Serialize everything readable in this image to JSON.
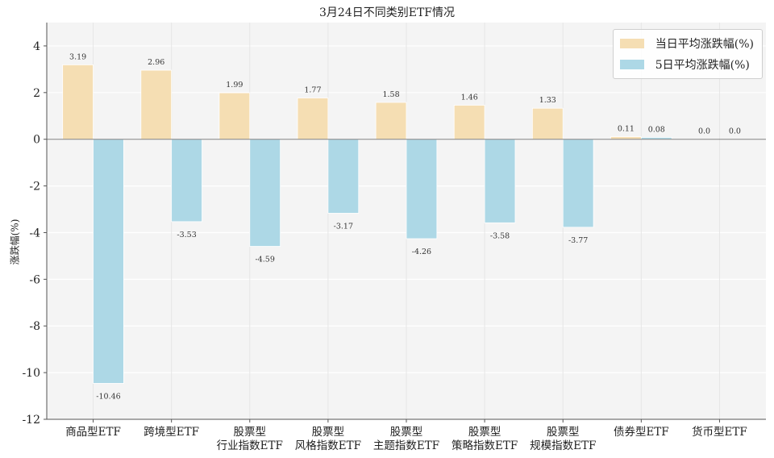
{
  "chart_data": {
    "type": "bar",
    "title": "3月24日不同类别ETF情况",
    "xlabel": "",
    "ylabel": "涨跌幅(%)",
    "ylim": [
      -12,
      5
    ],
    "yticks": [
      4,
      2,
      0,
      -2,
      -4,
      -6,
      -8,
      -10,
      -12
    ],
    "grid": true,
    "legend_position": "top-right",
    "categories": [
      [
        "商品型ETF"
      ],
      [
        "跨境型ETF"
      ],
      [
        "股票型",
        "行业指数ETF"
      ],
      [
        "股票型",
        "风格指数ETF"
      ],
      [
        "股票型",
        "主题指数ETF"
      ],
      [
        "股票型",
        "策略指数ETF"
      ],
      [
        "股票型",
        "规模指数ETF"
      ],
      [
        "债券型ETF"
      ],
      [
        "货币型ETF"
      ]
    ],
    "series": [
      {
        "name": "当日平均涨跌幅(%)",
        "color": "#f5deb3",
        "values": [
          3.19,
          2.96,
          1.99,
          1.77,
          1.58,
          1.46,
          1.33,
          0.11,
          0.0
        ]
      },
      {
        "name": "5日平均涨跌幅(%)",
        "color": "#add8e6",
        "values": [
          -10.46,
          -3.53,
          -4.59,
          -3.17,
          -4.26,
          -3.58,
          -3.77,
          0.08,
          0.0
        ]
      }
    ]
  }
}
